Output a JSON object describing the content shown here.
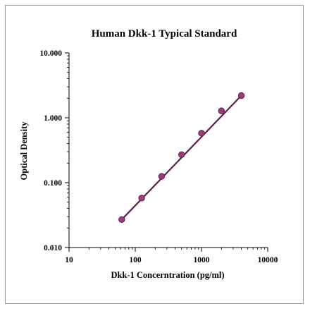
{
  "chart_data": {
    "type": "scatter",
    "title": "Human Dkk-1 Typical Standard",
    "xlabel": "Dkk-1 Concerntration (pg/ml)",
    "ylabel": "Optical Density",
    "x_scale": "log",
    "y_scale": "log",
    "xlim": [
      10,
      10000
    ],
    "ylim": [
      0.01,
      10
    ],
    "x_ticks": [
      "10",
      "100",
      "1000",
      "10000"
    ],
    "y_ticks": [
      "0.010",
      "0.100",
      "1.000",
      "10.000"
    ],
    "grid": false,
    "legend": "none",
    "colors": {
      "line": "#5a2050",
      "marker": "#a03a7a"
    },
    "series": [
      {
        "x": [
          62.5,
          125,
          250,
          500,
          1000,
          2000,
          4000
        ],
        "y": [
          0.027,
          0.058,
          0.125,
          0.27,
          0.58,
          1.28,
          2.2
        ]
      }
    ],
    "fit_line": {
      "x": [
        62.5,
        4000
      ],
      "y": [
        0.027,
        2.2
      ]
    }
  }
}
